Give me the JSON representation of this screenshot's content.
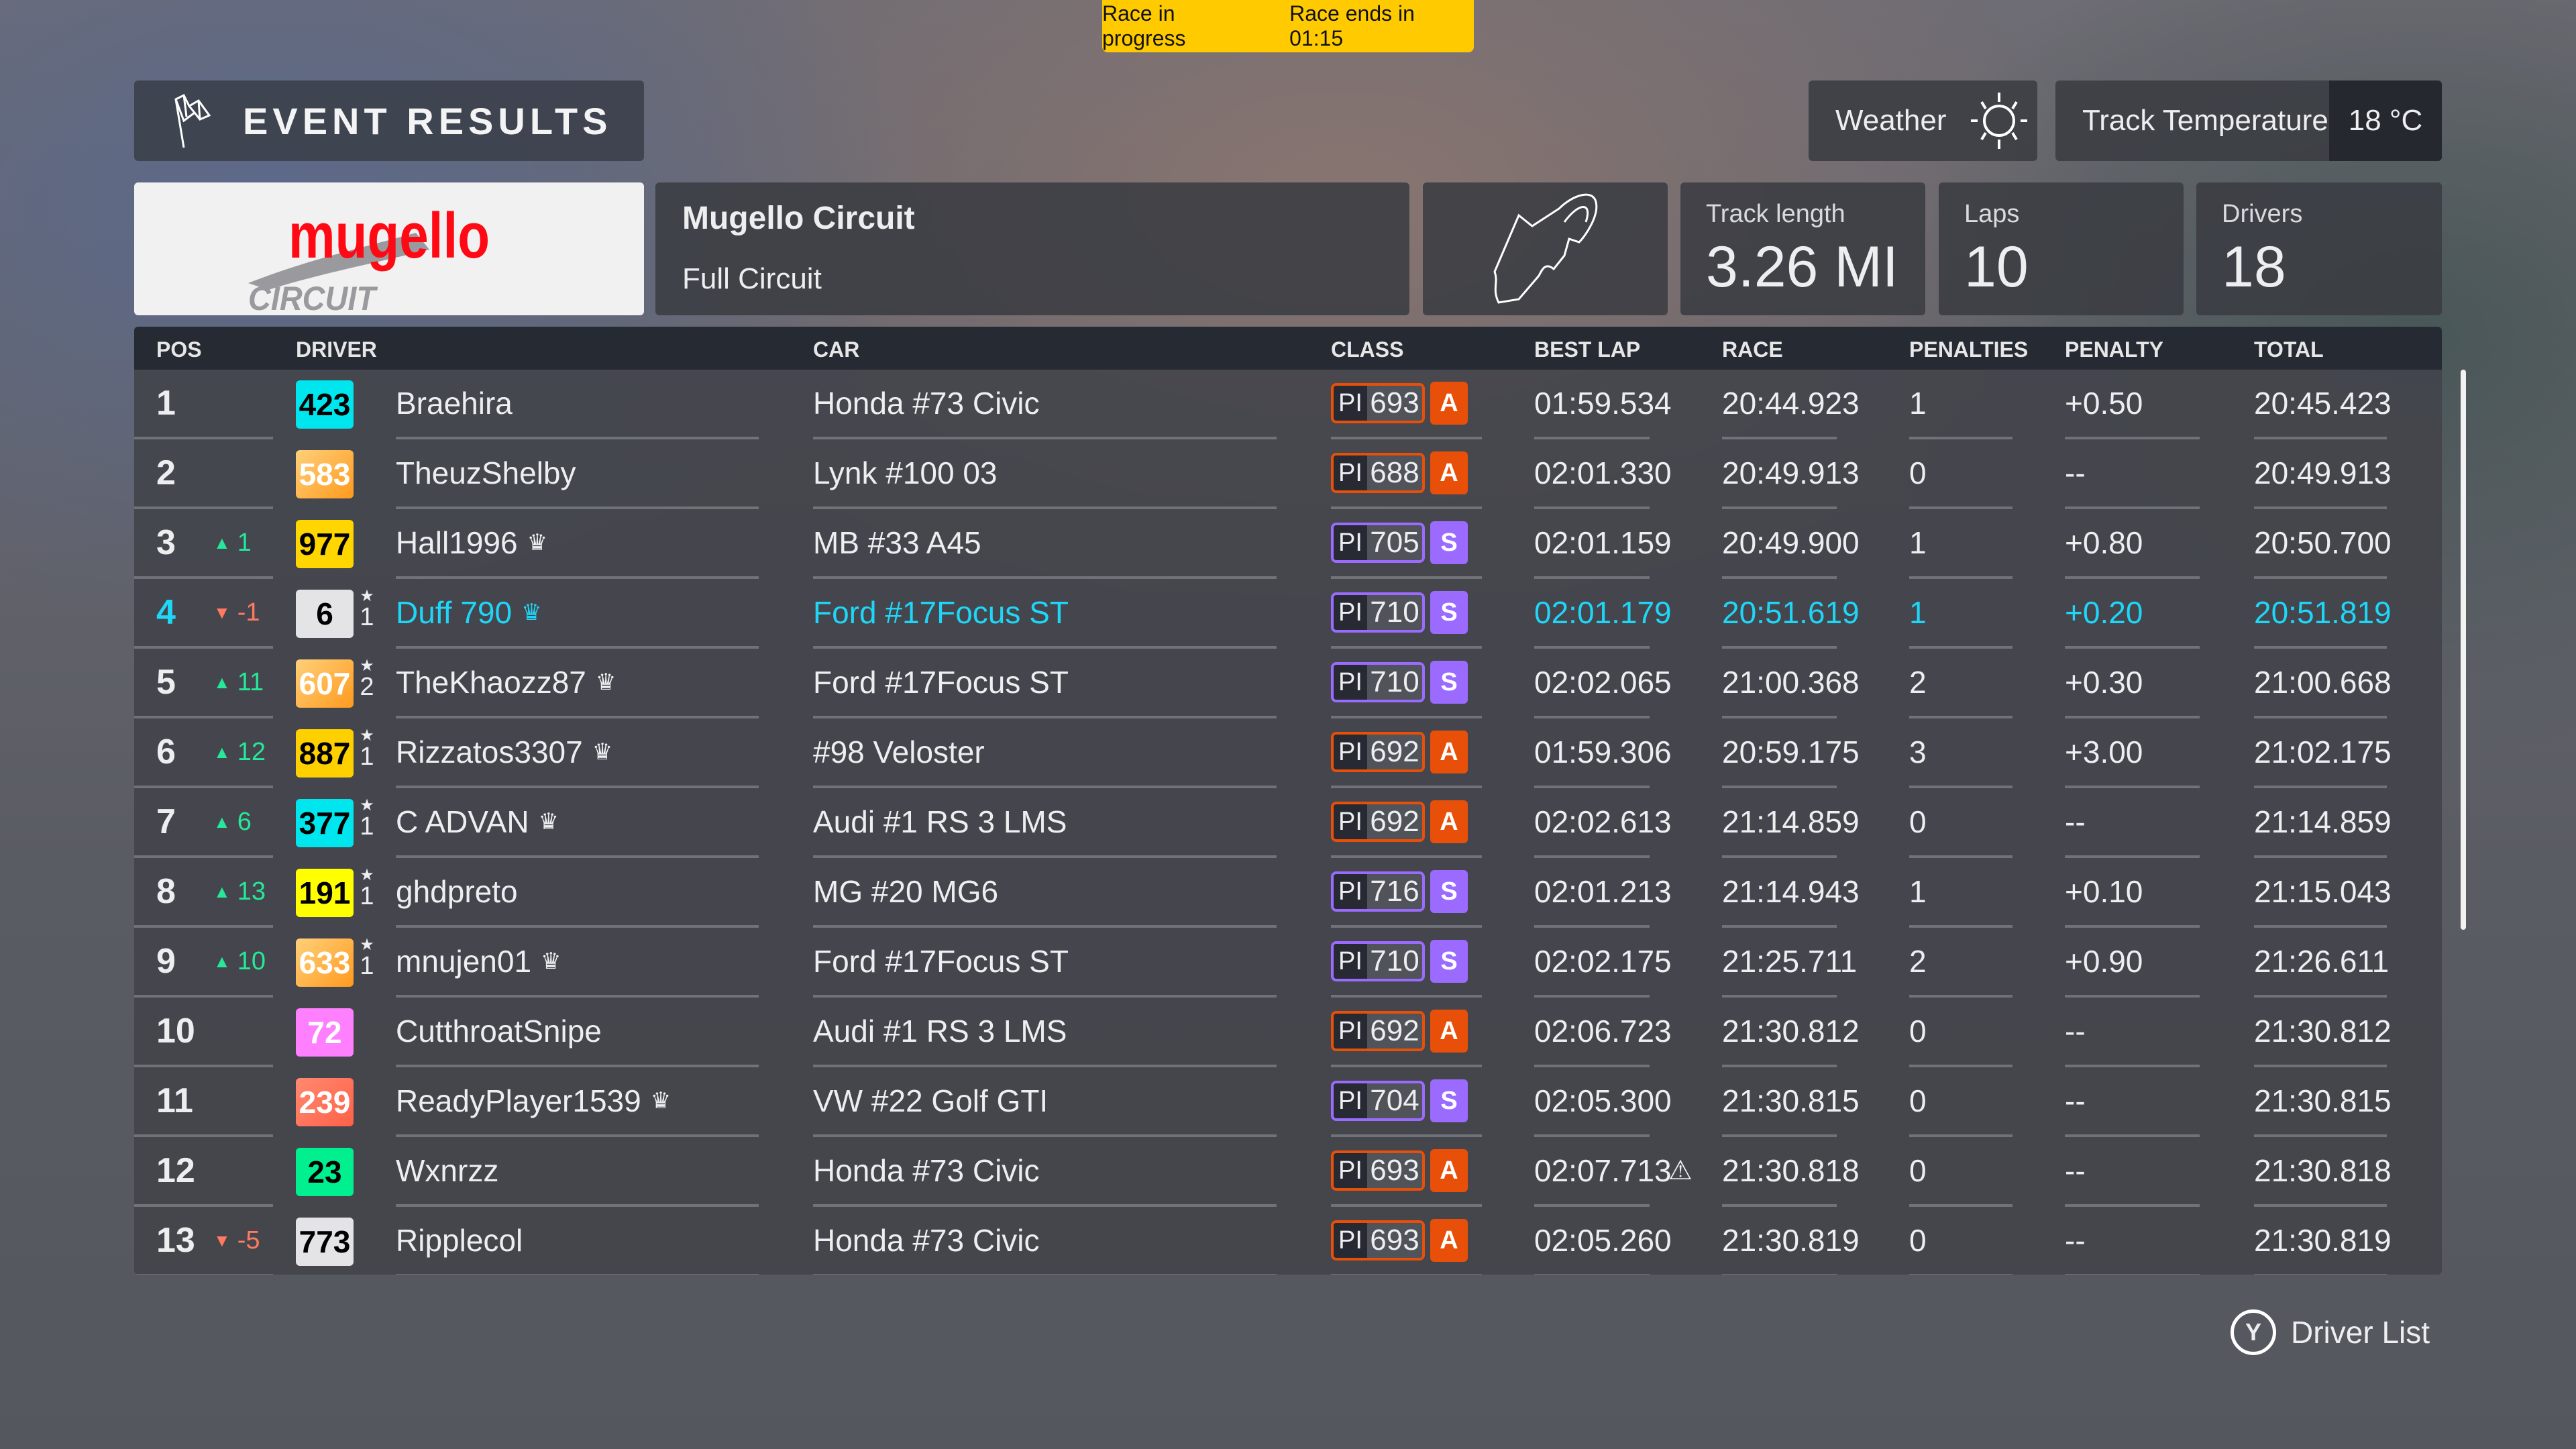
{
  "status_banner": {
    "state": "Race in progress",
    "timer": "Race ends in 01:15",
    "color": "#ffcb00"
  },
  "header": {
    "title": "EVENT RESULTS",
    "icon": "checkered-flag-icon"
  },
  "weather": {
    "label": "Weather",
    "icon": "sun-icon"
  },
  "track_temperature": {
    "label": "Track Temperature",
    "value": "18 °C"
  },
  "track": {
    "logo_text": "mugello",
    "logo_subtext": "CIRCUIT",
    "name": "Mugello Circuit",
    "layout": "Full Circuit",
    "map_icon": "track-map-icon"
  },
  "stats": {
    "track_length": {
      "label": "Track length",
      "value": "3.26 MI"
    },
    "laps": {
      "label": "Laps",
      "value": "10"
    },
    "drivers": {
      "label": "Drivers",
      "value": "18"
    }
  },
  "columns": {
    "pos": "POS",
    "driver": "DRIVER",
    "car": "CAR",
    "class": "CLASS",
    "best_lap": "BEST LAP",
    "race": "RACE",
    "penalties": "PENALTIES",
    "penalty": "PENALTY",
    "total": "TOTAL"
  },
  "colors": {
    "highlight": "#1ed6f7",
    "class_A": "#e8500a",
    "class_S": "#9b6bff",
    "gain": "#25e89a",
    "loss": "#ff7a60"
  },
  "rows": [
    {
      "pos": "1",
      "change": "",
      "dir": "",
      "rating": "423",
      "badge_bg": "#00e6ef",
      "badge_fg": "#000",
      "star": "",
      "driver": "Braehira",
      "crown": false,
      "car": "Honda #73 Civic",
      "pi_label": "PI",
      "pi": "693",
      "class": "A",
      "best_lap": "01:59.534",
      "warn": false,
      "race": "20:44.923",
      "penalties": "1",
      "penalty": "+0.50",
      "total": "20:45.423",
      "highlight": false
    },
    {
      "pos": "2",
      "change": "",
      "dir": "",
      "rating": "583",
      "badge_bg": "linear-gradient(135deg,#ffd07a,#ff9a1e)",
      "badge_fg": "#fff",
      "star": "",
      "driver": "TheuzShelby",
      "crown": false,
      "car": "Lynk #100 03",
      "pi_label": "PI",
      "pi": "688",
      "class": "A",
      "best_lap": "02:01.330",
      "warn": false,
      "race": "20:49.913",
      "penalties": "0",
      "penalty": "--",
      "total": "20:49.913",
      "highlight": false
    },
    {
      "pos": "3",
      "change": "1",
      "dir": "up",
      "rating": "977",
      "badge_bg": "#ffd600",
      "badge_fg": "#000",
      "star": "",
      "driver": "Hall1996",
      "crown": true,
      "car": "MB #33 A45",
      "pi_label": "PI",
      "pi": "705",
      "class": "S",
      "best_lap": "02:01.159",
      "warn": false,
      "race": "20:49.900",
      "penalties": "1",
      "penalty": "+0.80",
      "total": "20:50.700",
      "highlight": false
    },
    {
      "pos": "4",
      "change": "-1",
      "dir": "down",
      "rating": "6",
      "badge_bg": "#e4e4e6",
      "badge_fg": "#000",
      "star": "1",
      "driver": "Duff 790",
      "crown": true,
      "car": "Ford #17Focus ST",
      "pi_label": "PI",
      "pi": "710",
      "class": "S",
      "best_lap": "02:01.179",
      "warn": false,
      "race": "20:51.619",
      "penalties": "1",
      "penalty": "+0.20",
      "total": "20:51.819",
      "highlight": true
    },
    {
      "pos": "5",
      "change": "11",
      "dir": "up",
      "rating": "607",
      "badge_bg": "linear-gradient(135deg,#ffd07a,#ff9a1e)",
      "badge_fg": "#fff",
      "star": "2",
      "driver": "TheKhaozz87",
      "crown": true,
      "car": "Ford #17Focus ST",
      "pi_label": "PI",
      "pi": "710",
      "class": "S",
      "best_lap": "02:02.065",
      "warn": false,
      "race": "21:00.368",
      "penalties": "2",
      "penalty": "+0.30",
      "total": "21:00.668",
      "highlight": false
    },
    {
      "pos": "6",
      "change": "12",
      "dir": "up",
      "rating": "887",
      "badge_bg": "#ffd000",
      "badge_fg": "#000",
      "star": "1",
      "driver": "Rizzatos3307",
      "crown": true,
      "car": "#98 Veloster",
      "pi_label": "PI",
      "pi": "692",
      "class": "A",
      "best_lap": "01:59.306",
      "warn": false,
      "race": "20:59.175",
      "penalties": "3",
      "penalty": "+3.00",
      "total": "21:02.175",
      "highlight": false
    },
    {
      "pos": "7",
      "change": "6",
      "dir": "up",
      "rating": "377",
      "badge_bg": "#00e6ef",
      "badge_fg": "#000",
      "star": "1",
      "driver": "C ADVAN",
      "crown": true,
      "car": "Audi #1 RS 3 LMS",
      "pi_label": "PI",
      "pi": "692",
      "class": "A",
      "best_lap": "02:02.613",
      "warn": false,
      "race": "21:14.859",
      "penalties": "0",
      "penalty": "--",
      "total": "21:14.859",
      "highlight": false
    },
    {
      "pos": "8",
      "change": "13",
      "dir": "up",
      "rating": "191",
      "badge_bg": "#ffff00",
      "badge_fg": "#000",
      "star": "1",
      "driver": "ghdpreto",
      "crown": false,
      "car": "MG #20 MG6",
      "pi_label": "PI",
      "pi": "716",
      "class": "S",
      "best_lap": "02:01.213",
      "warn": false,
      "race": "21:14.943",
      "penalties": "1",
      "penalty": "+0.10",
      "total": "21:15.043",
      "highlight": false
    },
    {
      "pos": "9",
      "change": "10",
      "dir": "up",
      "rating": "633",
      "badge_bg": "linear-gradient(135deg,#ffd07a,#ff9a1e)",
      "badge_fg": "#fff",
      "star": "1",
      "driver": "mnujen01",
      "crown": true,
      "car": "Ford #17Focus ST",
      "pi_label": "PI",
      "pi": "710",
      "class": "S",
      "best_lap": "02:02.175",
      "warn": false,
      "race": "21:25.711",
      "penalties": "2",
      "penalty": "+0.90",
      "total": "21:26.611",
      "highlight": false
    },
    {
      "pos": "10",
      "change": "",
      "dir": "",
      "rating": "72",
      "badge_bg": "#ff80ff",
      "badge_fg": "#fff",
      "star": "",
      "driver": "CutthroatSnipe",
      "crown": false,
      "car": "Audi #1 RS 3 LMS",
      "pi_label": "PI",
      "pi": "692",
      "class": "A",
      "best_lap": "02:06.723",
      "warn": false,
      "race": "21:30.812",
      "penalties": "0",
      "penalty": "--",
      "total": "21:30.812",
      "highlight": false
    },
    {
      "pos": "11",
      "change": "",
      "dir": "",
      "rating": "239",
      "badge_bg": "linear-gradient(135deg,#ff8a70,#ff6048)",
      "badge_fg": "#fff",
      "star": "",
      "driver": "ReadyPlayer1539",
      "crown": true,
      "car": "VW #22 Golf GTI",
      "pi_label": "PI",
      "pi": "704",
      "class": "S",
      "best_lap": "02:05.300",
      "warn": false,
      "race": "21:30.815",
      "penalties": "0",
      "penalty": "--",
      "total": "21:30.815",
      "highlight": false
    },
    {
      "pos": "12",
      "change": "",
      "dir": "",
      "rating": "23",
      "badge_bg": "#00f090",
      "badge_fg": "#000",
      "star": "",
      "driver": "Wxnrzz",
      "crown": false,
      "car": "Honda #73 Civic",
      "pi_label": "PI",
      "pi": "693",
      "class": "A",
      "best_lap": "02:07.713",
      "warn": true,
      "race": "21:30.818",
      "penalties": "0",
      "penalty": "--",
      "total": "21:30.818",
      "highlight": false
    },
    {
      "pos": "13",
      "change": "-5",
      "dir": "down",
      "rating": "773",
      "badge_bg": "#e4e4e6",
      "badge_fg": "#000",
      "star": "",
      "driver": "Ripplecol",
      "crown": false,
      "car": "Honda #73 Civic",
      "pi_label": "PI",
      "pi": "693",
      "class": "A",
      "best_lap": "02:05.260",
      "warn": false,
      "race": "21:30.819",
      "penalties": "0",
      "penalty": "--",
      "total": "21:30.819",
      "highlight": false
    }
  ],
  "footer": {
    "button_glyph": "Y",
    "label": "Driver List"
  }
}
